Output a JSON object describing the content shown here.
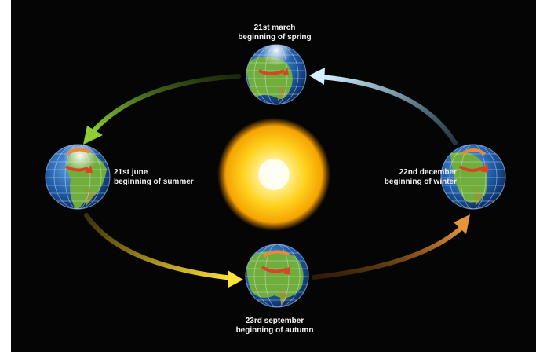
{
  "labels": {
    "march": {
      "date": "21st march",
      "season": "beginning of spring"
    },
    "june": {
      "date": "21st june",
      "season": "beginning of summer"
    },
    "september": {
      "date": "23rd september",
      "season": "beginning of autumn"
    },
    "december": {
      "date": "22nd december",
      "season": "beginning of winter"
    }
  },
  "colors": {
    "background": "#050505",
    "sun_core": "#fffbe6",
    "sun_mid": "#ffd21f",
    "sun_edge": "#f08a00",
    "arrow_march_to_june": "#7fb82f",
    "arrow_june_to_september": "#f5d21a",
    "arrow_september_to_december": "#d9852b",
    "arrow_december_to_march": "#bfe3f5",
    "ocean": "#1e5aa6",
    "land": "#6fae3a",
    "spin_arrow": "#d94425"
  },
  "icons": {
    "sun": "sun-icon",
    "earth": "earth-globe-icon",
    "rotation": "rotation-arrow-icon"
  }
}
